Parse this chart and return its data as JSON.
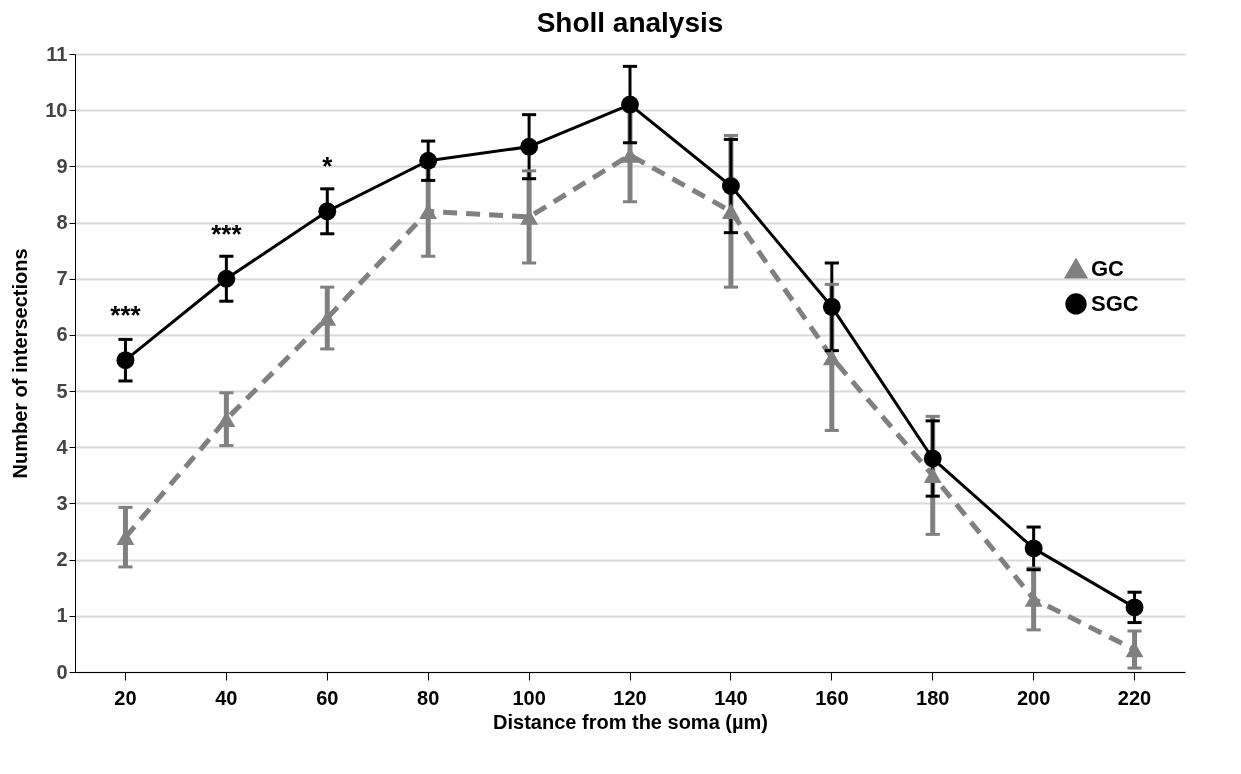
{
  "chart_data": {
    "type": "line",
    "title": "Sholl analysis",
    "xlabel": "Distance from the soma (µm)",
    "ylabel": "Number of intersections",
    "categories": [
      "20",
      "40",
      "60",
      "80",
      "100",
      "120",
      "140",
      "160",
      "180",
      "200",
      "220"
    ],
    "series": [
      {
        "name": "GC",
        "color": "#808080",
        "marker": "triangle",
        "line_style": "dashed",
        "values": [
          2.4,
          4.5,
          6.3,
          8.2,
          8.1,
          9.2,
          8.2,
          5.6,
          3.5,
          1.3,
          0.4
        ],
        "errors": [
          0.53,
          0.47,
          0.55,
          0.8,
          0.82,
          0.83,
          1.35,
          1.3,
          1.05,
          0.55,
          0.33
        ]
      },
      {
        "name": "SGC",
        "color": "#000000",
        "marker": "circle",
        "line_style": "solid",
        "values": [
          5.55,
          7.0,
          8.2,
          9.1,
          9.35,
          10.1,
          8.65,
          6.5,
          3.8,
          2.2,
          1.15
        ],
        "errors": [
          0.37,
          0.4,
          0.4,
          0.35,
          0.57,
          0.68,
          0.83,
          0.78,
          0.67,
          0.38,
          0.27
        ]
      }
    ],
    "ylim": [
      0,
      11
    ],
    "yticks": [
      0,
      1,
      2,
      3,
      4,
      5,
      6,
      7,
      8,
      9,
      10,
      11
    ],
    "grid": "y",
    "legend": "right",
    "annotations": [
      {
        "text": "***",
        "x": "20",
        "y": 5.55
      },
      {
        "text": "***",
        "x": "40",
        "y": 7.0
      },
      {
        "text": "*",
        "x": "60",
        "y": 8.2
      }
    ]
  }
}
